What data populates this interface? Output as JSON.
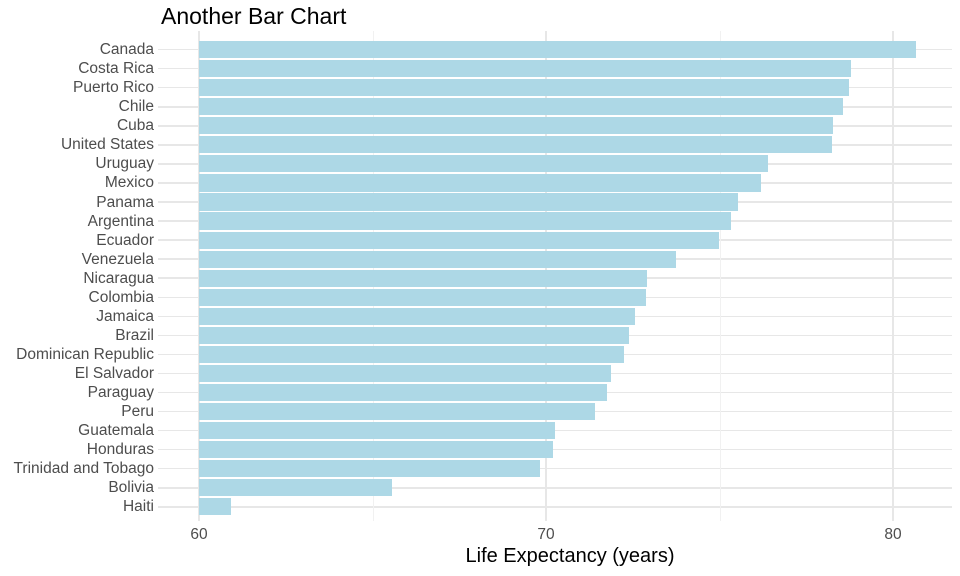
{
  "chart_data": {
    "type": "bar",
    "orientation": "horizontal",
    "title": "Another Bar Chart",
    "xlabel": "Life Expectancy (years)",
    "ylabel": "",
    "categories": [
      "Canada",
      "Costa Rica",
      "Puerto Rico",
      "Chile",
      "Cuba",
      "United States",
      "Uruguay",
      "Mexico",
      "Panama",
      "Argentina",
      "Ecuador",
      "Venezuela",
      "Nicaragua",
      "Colombia",
      "Jamaica",
      "Brazil",
      "Dominican Republic",
      "El Salvador",
      "Paraguay",
      "Peru",
      "Guatemala",
      "Honduras",
      "Trinidad and Tobago",
      "Bolivia",
      "Haiti"
    ],
    "values": [
      80.653,
      78.782,
      78.746,
      78.553,
      78.273,
      78.242,
      76.384,
      76.195,
      75.537,
      75.32,
      74.994,
      73.747,
      72.899,
      72.889,
      72.567,
      72.39,
      72.235,
      71.878,
      71.752,
      71.421,
      70.259,
      70.198,
      69.819,
      65.554,
      60.916
    ],
    "x_ticks": [
      60,
      70,
      80
    ],
    "x_minor_ticks": [
      65,
      75
    ],
    "xlim": [
      58.8,
      81.7
    ],
    "bar_origin": 60,
    "grid": true,
    "legend": false,
    "colors": {
      "bar_fill": "#ADD8E6",
      "axis_text": "#4D4D4D",
      "title_text": "#000000",
      "grid_major": "#E7E7E7",
      "grid_minor": "#F1F1F1",
      "background": "#FFFFFF"
    }
  }
}
